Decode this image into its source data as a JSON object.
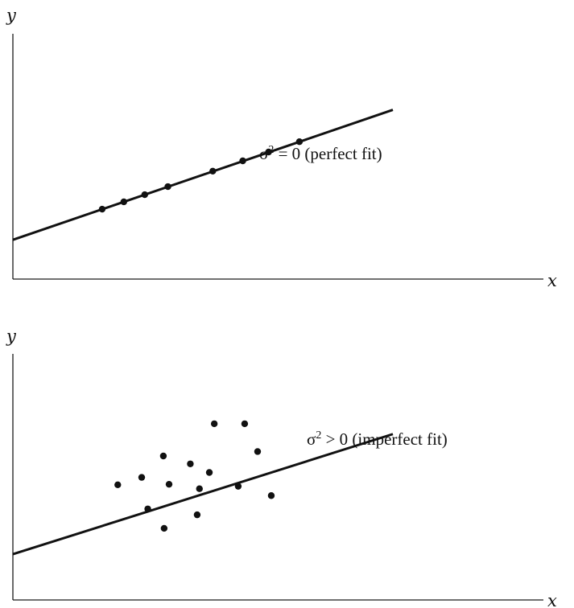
{
  "chart_data": [
    {
      "type": "scatter",
      "xlabel": "x",
      "ylabel": "y",
      "annotation": "σ² = 0 (perfect fit)",
      "annotation_parts": {
        "base": "σ",
        "sup": "2",
        "rest": " = 0 (perfect fit)"
      },
      "fit_line": {
        "x": [
          0,
          10
        ],
        "y": [
          1.6,
          6.9
        ]
      },
      "points": [
        {
          "x": 2.35,
          "y": 2.85
        },
        {
          "x": 2.92,
          "y": 3.15
        },
        {
          "x": 3.47,
          "y": 3.44
        },
        {
          "x": 4.08,
          "y": 3.77
        },
        {
          "x": 5.26,
          "y": 4.4
        },
        {
          "x": 6.05,
          "y": 4.82
        },
        {
          "x": 6.73,
          "y": 5.18
        },
        {
          "x": 7.54,
          "y": 5.6
        }
      ]
    },
    {
      "type": "scatter",
      "xlabel": "x",
      "ylabel": "y",
      "annotation": "σ² > 0 (imperfect fit)",
      "annotation_parts": {
        "base": "σ",
        "sup": "2",
        "rest": " > 0 (imperfect fit)"
      },
      "fit_line": {
        "x": [
          0,
          10
        ],
        "y": [
          1.86,
          6.74
        ]
      },
      "points": [
        {
          "x": 5.3,
          "y": 7.16
        },
        {
          "x": 6.1,
          "y": 7.16
        },
        {
          "x": 3.96,
          "y": 5.85
        },
        {
          "x": 6.44,
          "y": 6.03
        },
        {
          "x": 4.67,
          "y": 5.53
        },
        {
          "x": 3.39,
          "y": 4.98
        },
        {
          "x": 5.17,
          "y": 5.18
        },
        {
          "x": 2.76,
          "y": 4.68
        },
        {
          "x": 4.11,
          "y": 4.7
        },
        {
          "x": 4.91,
          "y": 4.52
        },
        {
          "x": 5.93,
          "y": 4.62
        },
        {
          "x": 6.8,
          "y": 4.24
        },
        {
          "x": 3.55,
          "y": 3.7
        },
        {
          "x": 4.85,
          "y": 3.46
        },
        {
          "x": 3.98,
          "y": 2.91
        }
      ]
    }
  ]
}
